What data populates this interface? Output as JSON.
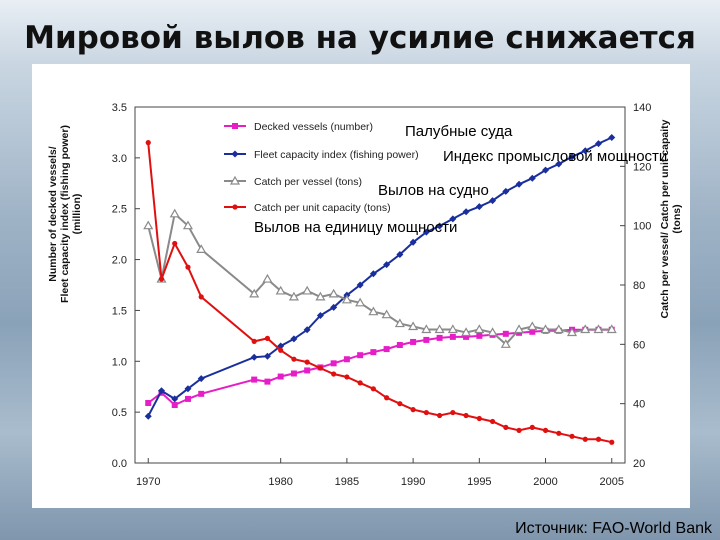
{
  "slide": {
    "title": "Мировой вылов на усилие снижается",
    "source": "Источник: FAO-World Bank"
  },
  "overlay_labels": [
    "Палубные суда",
    "Индекс промысловой мощности",
    "Вылов на судно",
    "Вылов на единицу мощности"
  ],
  "chart_data": {
    "type": "line",
    "left_axis": {
      "label_lines": [
        "Number of decked vessels/",
        "Fleet capacity index (fishing power)",
        "(million)"
      ],
      "range": [
        0,
        3.5
      ],
      "ticks": [
        "0.0",
        "0.5",
        "1.0",
        "1.5",
        "2.0",
        "2.5",
        "3.0",
        "3.5"
      ]
    },
    "right_axis": {
      "label_lines": [
        "Catch per vessel/ Catch per unit capaity",
        "(tons)"
      ],
      "range": [
        20,
        140
      ],
      "ticks": [
        "20",
        "40",
        "60",
        "80",
        "100",
        "120",
        "140"
      ]
    },
    "x_axis": {
      "range": [
        1969,
        2006
      ],
      "ticks": [
        "1970",
        "1980",
        "1985",
        "1990",
        "1995",
        "2000",
        "2005"
      ]
    },
    "legend_position": "top-left",
    "series": [
      {
        "name": "Decked vessels (number)",
        "axis": "left",
        "color": "#e61ec8",
        "marker": "square",
        "x": [
          1970,
          1971,
          1972,
          1973,
          1974,
          1978,
          1979,
          1980,
          1981,
          1982,
          1983,
          1984,
          1985,
          1986,
          1987,
          1988,
          1989,
          1990,
          1991,
          1992,
          1993,
          1994,
          1995,
          1996,
          1997,
          1998,
          1999,
          2000,
          2001,
          2002,
          2003,
          2004,
          2005
        ],
        "y": [
          0.59,
          0.69,
          0.57,
          0.63,
          0.68,
          0.82,
          0.8,
          0.85,
          0.88,
          0.91,
          0.94,
          0.98,
          1.02,
          1.06,
          1.09,
          1.12,
          1.16,
          1.19,
          1.21,
          1.23,
          1.24,
          1.24,
          1.25,
          1.26,
          1.27,
          1.28,
          1.29,
          1.3,
          1.3,
          1.31,
          1.31,
          1.31,
          1.31
        ]
      },
      {
        "name": "Fleet capacity index (fishing power)",
        "axis": "left",
        "color": "#1a2f9c",
        "marker": "diamond",
        "x": [
          1970,
          1971,
          1972,
          1973,
          1974,
          1978,
          1979,
          1980,
          1981,
          1982,
          1983,
          1984,
          1985,
          1986,
          1987,
          1988,
          1989,
          1990,
          1991,
          1992,
          1993,
          1994,
          1995,
          1996,
          1997,
          1998,
          1999,
          2000,
          2001,
          2002,
          2003,
          2004,
          2005
        ],
        "y": [
          0.46,
          0.71,
          0.63,
          0.73,
          0.83,
          1.04,
          1.05,
          1.15,
          1.22,
          1.31,
          1.45,
          1.53,
          1.65,
          1.75,
          1.86,
          1.95,
          2.05,
          2.17,
          2.27,
          2.33,
          2.4,
          2.47,
          2.52,
          2.58,
          2.67,
          2.74,
          2.8,
          2.88,
          2.94,
          3.01,
          3.07,
          3.14,
          3.2
        ]
      },
      {
        "name": "Catch per vessel (tons)",
        "axis": "right",
        "color": "#8a8a8a",
        "marker": "triangle-open",
        "x": [
          1970,
          1971,
          1972,
          1973,
          1974,
          1978,
          1979,
          1980,
          1981,
          1982,
          1983,
          1984,
          1985,
          1986,
          1987,
          1988,
          1989,
          1990,
          1991,
          1992,
          1993,
          1994,
          1995,
          1996,
          1997,
          1998,
          1999,
          2000,
          2001,
          2002,
          2003,
          2004,
          2005
        ],
        "y": [
          100,
          82,
          104,
          100,
          92,
          77,
          82,
          78,
          76,
          78,
          76,
          77,
          75,
          74,
          71,
          70,
          67,
          66,
          65,
          65,
          65,
          64,
          65,
          64,
          60,
          65,
          66,
          65,
          65,
          64,
          65,
          65,
          65
        ]
      },
      {
        "name": "Catch per unit capacity (tons)",
        "axis": "right",
        "color": "#e01010",
        "marker": "circle",
        "x": [
          1970,
          1971,
          1972,
          1973,
          1974,
          1978,
          1979,
          1980,
          1981,
          1982,
          1983,
          1984,
          1985,
          1986,
          1987,
          1988,
          1989,
          1990,
          1991,
          1992,
          1993,
          1994,
          1995,
          1996,
          1997,
          1998,
          1999,
          2000,
          2001,
          2002,
          2003,
          2004,
          2005
        ],
        "y": [
          128,
          82,
          94,
          86,
          76,
          61,
          62,
          58,
          55,
          54,
          52,
          50,
          49,
          47,
          45,
          42,
          40,
          38,
          37,
          36,
          37,
          36,
          35,
          34,
          32,
          31,
          32,
          31,
          30,
          29,
          28,
          28,
          27
        ]
      }
    ]
  }
}
